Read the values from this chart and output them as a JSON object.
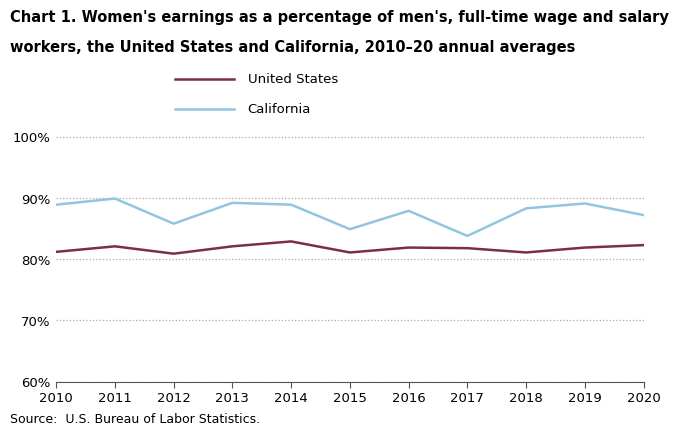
{
  "years": [
    2010,
    2011,
    2012,
    2013,
    2014,
    2015,
    2016,
    2017,
    2018,
    2019,
    2020
  ],
  "us_values": [
    81.2,
    82.1,
    80.9,
    82.1,
    82.9,
    81.1,
    81.9,
    81.8,
    81.1,
    81.9,
    82.3
  ],
  "ca_values": [
    88.9,
    89.9,
    85.8,
    89.2,
    88.9,
    84.9,
    87.9,
    83.8,
    88.3,
    89.1,
    87.2
  ],
  "us_color": "#7b2d4e",
  "ca_color": "#92c5de",
  "title_line1": "Chart 1. Women's earnings as a percentage of men's, full-time wage and salary",
  "title_line2": "workers, the United States and California, 2010–20 annual averages",
  "source": "Source:  U.S. Bureau of Labor Statistics.",
  "ylim": [
    60,
    101
  ],
  "yticks": [
    60,
    70,
    80,
    90,
    100
  ],
  "ytick_labels": [
    "60%",
    "70%",
    "80%",
    "90%",
    "100%"
  ],
  "legend_labels": [
    "United States",
    "California"
  ],
  "line_width": 1.8,
  "title_fontsize": 10.5,
  "tick_fontsize": 9.5,
  "source_fontsize": 9
}
